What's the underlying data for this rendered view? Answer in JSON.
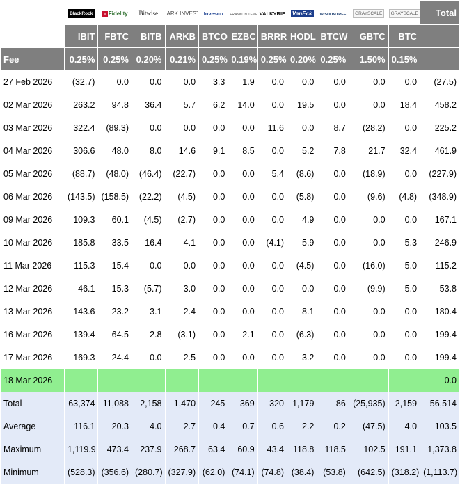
{
  "header": {
    "total_label": "Total",
    "fee_label": "Fee",
    "issuers": [
      {
        "key": "ibit",
        "ticker": "IBIT",
        "fee": "0.25%",
        "logo_text": "BlackRock"
      },
      {
        "key": "fbtc",
        "ticker": "FBTC",
        "fee": "0.25%",
        "logo_text": "Fidelity"
      },
      {
        "key": "bitb",
        "ticker": "BITB",
        "fee": "0.20%",
        "logo_text": "Bitwise"
      },
      {
        "key": "arkb",
        "ticker": "ARKB",
        "fee": "0.21%",
        "logo_text": "ARK INVEST"
      },
      {
        "key": "btco",
        "ticker": "BTCO",
        "fee": "0.25%",
        "logo_text": "Invesco"
      },
      {
        "key": "ezbc",
        "ticker": "EZBC",
        "fee": "0.19%",
        "logo_text": "FRANKLIN TEMPLETON"
      },
      {
        "key": "brrr",
        "ticker": "BRRR",
        "fee": "0.25%",
        "logo_text": "VALKYRIE"
      },
      {
        "key": "hodl",
        "ticker": "HODL",
        "fee": "0.20%",
        "logo_text": "VanEck"
      },
      {
        "key": "btcw",
        "ticker": "BTCW",
        "fee": "0.25%",
        "logo_text": "WISDOMTREE"
      },
      {
        "key": "gbtc",
        "ticker": "GBTC",
        "fee": "1.50%",
        "logo_text": "GRAYSCALE"
      },
      {
        "key": "btc",
        "ticker": "BTC",
        "fee": "0.15%",
        "logo_text": "GRAYSCALE"
      }
    ]
  },
  "rows": [
    {
      "date": "27 Feb 2026",
      "values": [
        "(32.7)",
        "0.0",
        "0.0",
        "0.0",
        "3.3",
        "1.9",
        "0.0",
        "0.0",
        "0.0",
        "0.0",
        "0.0"
      ],
      "total": "(27.5)"
    },
    {
      "date": "02 Mar 2026",
      "values": [
        "263.2",
        "94.8",
        "36.4",
        "5.7",
        "6.2",
        "14.0",
        "0.0",
        "19.5",
        "0.0",
        "0.0",
        "18.4"
      ],
      "total": "458.2"
    },
    {
      "date": "03 Mar 2026",
      "values": [
        "322.4",
        "(89.3)",
        "0.0",
        "0.0",
        "0.0",
        "0.0",
        "11.6",
        "0.0",
        "8.7",
        "(28.2)",
        "0.0"
      ],
      "total": "225.2"
    },
    {
      "date": "04 Mar 2026",
      "values": [
        "306.6",
        "48.0",
        "8.0",
        "14.6",
        "9.1",
        "8.5",
        "0.0",
        "5.2",
        "7.8",
        "21.7",
        "32.4"
      ],
      "total": "461.9"
    },
    {
      "date": "05 Mar 2026",
      "values": [
        "(88.7)",
        "(48.0)",
        "(46.4)",
        "(22.7)",
        "0.0",
        "0.0",
        "5.4",
        "(8.6)",
        "0.0",
        "(18.9)",
        "0.0"
      ],
      "total": "(227.9)"
    },
    {
      "date": "06 Mar 2026",
      "values": [
        "(143.5)",
        "(158.5)",
        "(22.2)",
        "(4.5)",
        "0.0",
        "0.0",
        "0.0",
        "(5.8)",
        "0.0",
        "(9.6)",
        "(4.8)"
      ],
      "total": "(348.9)"
    },
    {
      "date": "09 Mar 2026",
      "values": [
        "109.3",
        "60.1",
        "(4.5)",
        "(2.7)",
        "0.0",
        "0.0",
        "0.0",
        "4.9",
        "0.0",
        "0.0",
        "0.0"
      ],
      "total": "167.1"
    },
    {
      "date": "10 Mar 2026",
      "values": [
        "185.8",
        "33.5",
        "16.4",
        "4.1",
        "0.0",
        "0.0",
        "(4.1)",
        "5.9",
        "0.0",
        "0.0",
        "5.3"
      ],
      "total": "246.9"
    },
    {
      "date": "11 Mar 2026",
      "values": [
        "115.3",
        "15.4",
        "0.0",
        "0.0",
        "0.0",
        "0.0",
        "0.0",
        "(4.5)",
        "0.0",
        "(16.0)",
        "5.0"
      ],
      "total": "115.2"
    },
    {
      "date": "12 Mar 2026",
      "values": [
        "46.1",
        "15.3",
        "(5.7)",
        "3.0",
        "0.0",
        "0.0",
        "0.0",
        "0.0",
        "0.0",
        "(9.9)",
        "5.0"
      ],
      "total": "53.8"
    },
    {
      "date": "13 Mar 2026",
      "values": [
        "143.6",
        "23.2",
        "3.1",
        "2.4",
        "0.0",
        "0.0",
        "0.0",
        "8.1",
        "0.0",
        "0.0",
        "0.0"
      ],
      "total": "180.4"
    },
    {
      "date": "16 Mar 2026",
      "values": [
        "139.4",
        "64.5",
        "2.8",
        "(3.1)",
        "0.0",
        "2.1",
        "0.0",
        "(6.3)",
        "0.0",
        "0.0",
        "0.0"
      ],
      "total": "199.4"
    },
    {
      "date": "17 Mar 2026",
      "values": [
        "169.3",
        "24.4",
        "0.0",
        "2.5",
        "0.0",
        "0.0",
        "0.0",
        "3.2",
        "0.0",
        "0.0",
        "0.0"
      ],
      "total": "199.4"
    }
  ],
  "highlight_row": {
    "date": "18 Mar 2026",
    "values": [
      "-",
      "-",
      "-",
      "-",
      "-",
      "-",
      "-",
      "-",
      "-",
      "-",
      "-"
    ],
    "total": "0.0"
  },
  "summary": [
    {
      "label": "Total",
      "values": [
        "63,374",
        "11,088",
        "2,158",
        "1,470",
        "245",
        "369",
        "320",
        "1,179",
        "86",
        "(25,935)",
        "2,159"
      ],
      "total": "56,514"
    },
    {
      "label": "Average",
      "values": [
        "116.1",
        "20.3",
        "4.0",
        "2.7",
        "0.4",
        "0.7",
        "0.6",
        "2.2",
        "0.2",
        "(47.5)",
        "4.0"
      ],
      "total": "103.5"
    },
    {
      "label": "Maximum",
      "values": [
        "1,119.9",
        "473.4",
        "237.9",
        "268.7",
        "63.4",
        "60.9",
        "43.4",
        "118.8",
        "118.5",
        "102.5",
        "191.1"
      ],
      "total": "1,373.8"
    },
    {
      "label": "Minimum",
      "values": [
        "(528.3)",
        "(356.6)",
        "(280.7)",
        "(327.9)",
        "(62.0)",
        "(74.1)",
        "(74.8)",
        "(38.4)",
        "(53.8)",
        "(642.5)",
        "(318.2)"
      ],
      "total": "(1,113.7)"
    }
  ],
  "colors": {
    "header_gray": "#7f7f7f",
    "negative": "#ff0000",
    "highlight_green": "#90ee90",
    "summary_blue": "#e3eaf8"
  }
}
